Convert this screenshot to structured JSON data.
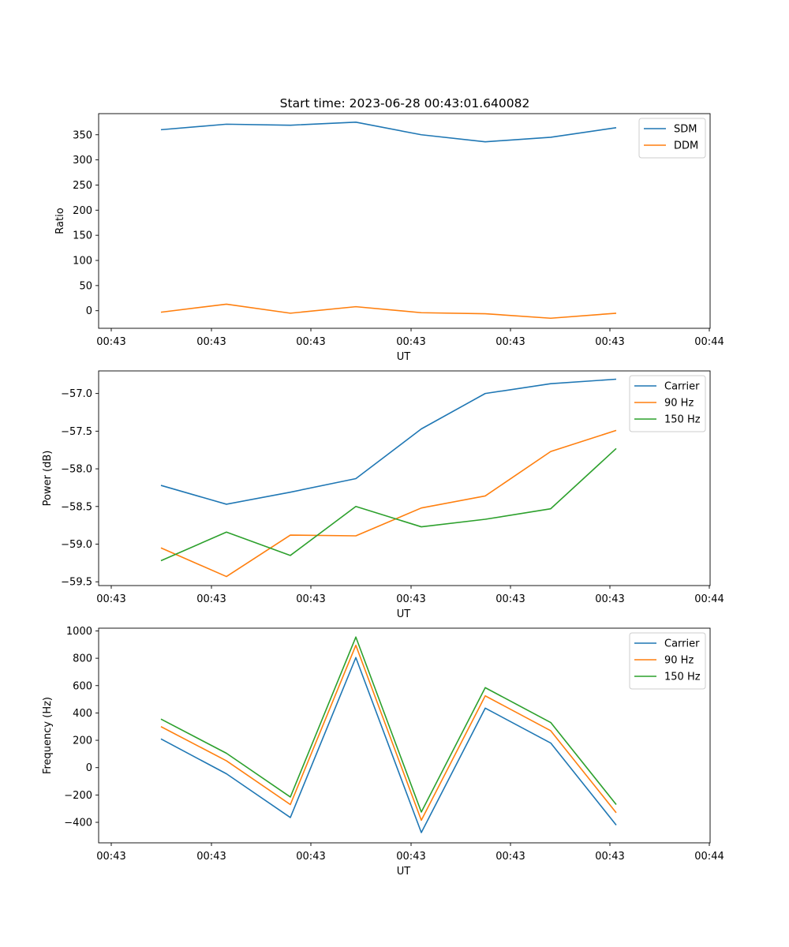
{
  "figure_title": "Start time: 2023-06-28 00:43:01.640082",
  "colors": {
    "blue": "#1f77b4",
    "orange": "#ff7f0e",
    "green": "#2ca02c"
  },
  "chart_data": [
    {
      "type": "line",
      "x_tick_labels": [
        "00:43",
        "00:43",
        "00:43",
        "00:43",
        "00:43",
        "00:43",
        "00:44"
      ],
      "xlabel": "UT",
      "ylabel": "Ratio",
      "ylim": [
        -35,
        392
      ],
      "y_ticks": [
        0,
        50,
        100,
        150,
        200,
        250,
        300,
        350
      ],
      "y_tick_labels": [
        "0",
        "50",
        "100",
        "150",
        "200",
        "250",
        "300",
        "350"
      ],
      "legend_position": "upper right",
      "series": [
        {
          "name": "SDM",
          "color": "#1f77b4",
          "values": [
            360,
            371,
            369,
            375,
            350,
            336,
            345,
            364
          ]
        },
        {
          "name": "DDM",
          "color": "#ff7f0e",
          "values": [
            -3,
            13,
            -5,
            8,
            -4,
            -6,
            -15,
            -5
          ]
        }
      ]
    },
    {
      "type": "line",
      "x_tick_labels": [
        "00:43",
        "00:43",
        "00:43",
        "00:43",
        "00:43",
        "00:43",
        "00:44"
      ],
      "xlabel": "UT",
      "ylabel": "Power (dB)",
      "ylim": [
        -59.55,
        -56.7
      ],
      "y_ticks": [
        -59.5,
        -59.0,
        -58.5,
        -58.0,
        -57.5,
        -57.0
      ],
      "y_tick_labels": [
        "−59.5",
        "−59.0",
        "−58.5",
        "−58.0",
        "−57.5",
        "−57.0"
      ],
      "legend_position": "upper right",
      "series": [
        {
          "name": "Carrier",
          "color": "#1f77b4",
          "values": [
            -58.22,
            -58.47,
            -58.31,
            -58.13,
            -57.47,
            -57.0,
            -56.87,
            -56.81
          ]
        },
        {
          "name": "90 Hz",
          "color": "#ff7f0e",
          "values": [
            -59.05,
            -59.43,
            -58.88,
            -58.89,
            -58.52,
            -58.36,
            -57.77,
            -57.49
          ]
        },
        {
          "name": "150 Hz",
          "color": "#2ca02c",
          "values": [
            -59.22,
            -58.84,
            -59.15,
            -58.5,
            -58.77,
            -58.67,
            -58.53,
            -57.73
          ]
        }
      ]
    },
    {
      "type": "line",
      "x_tick_labels": [
        "00:43",
        "00:43",
        "00:43",
        "00:43",
        "00:43",
        "00:43",
        "00:44"
      ],
      "xlabel": "UT",
      "ylabel": "Frequency (Hz)",
      "ylim": [
        -550,
        1020
      ],
      "y_ticks": [
        -400,
        -200,
        0,
        200,
        400,
        600,
        800,
        1000
      ],
      "y_tick_labels": [
        "−400",
        "−200",
        "0",
        "200",
        "400",
        "600",
        "800",
        "1000"
      ],
      "legend_position": "upper right",
      "series": [
        {
          "name": "Carrier",
          "color": "#1f77b4",
          "values": [
            210,
            -45,
            -365,
            805,
            -475,
            435,
            180,
            -420
          ]
        },
        {
          "name": "90 Hz",
          "color": "#ff7f0e",
          "values": [
            300,
            50,
            -270,
            895,
            -385,
            525,
            270,
            -330
          ]
        },
        {
          "name": "150 Hz",
          "color": "#2ca02c",
          "values": [
            355,
            105,
            -215,
            955,
            -325,
            585,
            330,
            -270
          ]
        }
      ]
    }
  ]
}
